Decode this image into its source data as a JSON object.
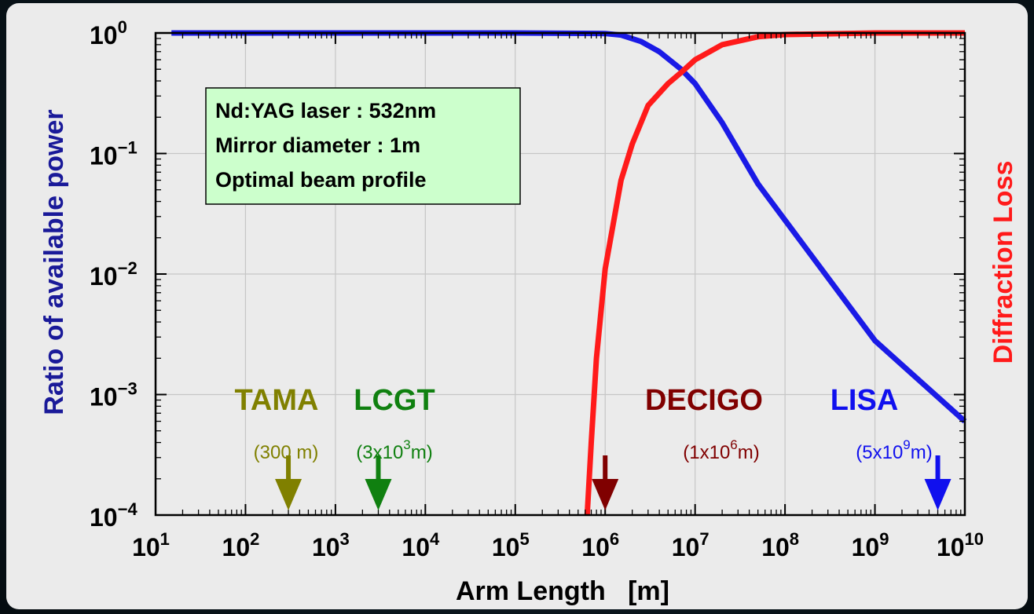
{
  "chart_data": {
    "type": "line",
    "title": "",
    "xlabel": "Arm Length   [m]",
    "ylabel_left": "Ratio of available power",
    "ylabel_right": "Diffraction Loss",
    "x_scale": "log",
    "y_scale": "log",
    "xlim": [
      10,
      10000000000
    ],
    "ylim": [
      0.0001,
      1
    ],
    "grid": true,
    "x_ticks": [
      {
        "base": "10",
        "exp": "1"
      },
      {
        "base": "10",
        "exp": "2"
      },
      {
        "base": "10",
        "exp": "3"
      },
      {
        "base": "10",
        "exp": "4"
      },
      {
        "base": "10",
        "exp": "5"
      },
      {
        "base": "10",
        "exp": "6"
      },
      {
        "base": "10",
        "exp": "7"
      },
      {
        "base": "10",
        "exp": "8"
      },
      {
        "base": "10",
        "exp": "9"
      },
      {
        "base": "10",
        "exp": "10"
      }
    ],
    "y_ticks": [
      {
        "base": "10",
        "exp": "0"
      },
      {
        "base": "10",
        "exp": "−1"
      },
      {
        "base": "10",
        "exp": "−2"
      },
      {
        "base": "10",
        "exp": "−3"
      },
      {
        "base": "10",
        "exp": "−4"
      }
    ],
    "series": [
      {
        "color": "#1a1ae6",
        "x": [
          15,
          100,
          1000,
          10000,
          100000,
          1000000,
          1500000,
          2500000,
          4000000,
          7000000,
          10000000,
          20000000,
          50000000,
          100000000,
          1000000000,
          10000000000
        ],
        "y": [
          1,
          1,
          1,
          1,
          1,
          0.99,
          0.96,
          0.85,
          0.7,
          0.5,
          0.38,
          0.18,
          0.056,
          0.028,
          0.0028,
          0.0006
        ]
      },
      {
        "color": "#ff1a1a",
        "x": [
          630000,
          700000,
          800000,
          1000000,
          1500000,
          2000000,
          3000000,
          5000000,
          7000000,
          10000000,
          20000000,
          50000000,
          100000000,
          1000000000,
          10000000000
        ],
        "y": [
          0.0001,
          0.0004,
          0.002,
          0.011,
          0.06,
          0.12,
          0.25,
          0.38,
          0.47,
          0.6,
          0.8,
          0.93,
          0.97,
          1,
          1
        ]
      }
    ],
    "info_box": [
      "Nd:YAG laser : 532nm",
      "Mirror diameter : 1m",
      "Optimal beam profile"
    ],
    "annotations": [
      {
        "name": "TAMA",
        "sub": "(300 m)",
        "x": 300,
        "color": "#808000"
      },
      {
        "name": "LCGT",
        "sub_pre": "(3x10",
        "sub_sup": "3",
        "sub_post": "m)",
        "x": 3000,
        "color": "#108010"
      },
      {
        "name": "DECIGO",
        "sub_pre": "(1x10",
        "sub_sup": "6",
        "sub_post": "m)",
        "x": 1000000,
        "color": "#800000"
      },
      {
        "name": "LISA",
        "sub_pre": "(5x10",
        "sub_sup": "9",
        "sub_post": "m)",
        "x": 5000000000,
        "color": "#1010ee"
      }
    ]
  }
}
